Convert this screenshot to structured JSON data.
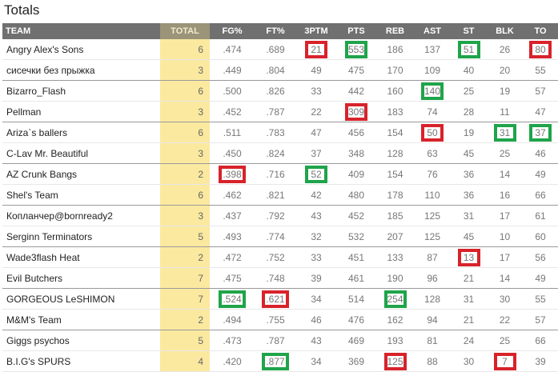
{
  "title": "Totals",
  "columns": [
    "TEAM",
    "TOTAL",
    "FG%",
    "FT%",
    "3PTM",
    "PTS",
    "REB",
    "AST",
    "ST",
    "BLK",
    "TO"
  ],
  "rows": [
    {
      "team": "Angry Alex's Sons",
      "total": "6",
      "fg": ".474",
      "ft": ".689",
      "tpm": "21",
      "pts": "553",
      "reb": "186",
      "ast": "137",
      "st": "51",
      "blk": "26",
      "to": "80"
    },
    {
      "team": "сисечки без прыжка",
      "total": "3",
      "fg": ".449",
      "ft": ".804",
      "tpm": "49",
      "pts": "475",
      "reb": "170",
      "ast": "109",
      "st": "40",
      "blk": "20",
      "to": "55"
    },
    {
      "team": "Bizarro_Flash",
      "total": "6",
      "fg": ".500",
      "ft": ".826",
      "tpm": "33",
      "pts": "442",
      "reb": "160",
      "ast": "140",
      "st": "25",
      "blk": "19",
      "to": "57"
    },
    {
      "team": "Pellman",
      "total": "3",
      "fg": ".452",
      "ft": ".787",
      "tpm": "22",
      "pts": "309",
      "reb": "183",
      "ast": "74",
      "st": "28",
      "blk": "11",
      "to": "47"
    },
    {
      "team": "Ariza`s ballers",
      "total": "6",
      "fg": ".511",
      "ft": ".783",
      "tpm": "47",
      "pts": "456",
      "reb": "154",
      "ast": "50",
      "st": "19",
      "blk": "31",
      "to": "37"
    },
    {
      "team": "C-Lav Mr. Beautiful",
      "total": "3",
      "fg": ".450",
      "ft": ".824",
      "tpm": "37",
      "pts": "348",
      "reb": "128",
      "ast": "63",
      "st": "45",
      "blk": "25",
      "to": "46"
    },
    {
      "team": "AZ Crunk Bangs",
      "total": "2",
      "fg": ".398",
      "ft": ".716",
      "tpm": "52",
      "pts": "409",
      "reb": "154",
      "ast": "76",
      "st": "36",
      "blk": "14",
      "to": "49"
    },
    {
      "team": "Shel's Team",
      "total": "6",
      "fg": ".462",
      "ft": ".821",
      "tpm": "42",
      "pts": "480",
      "reb": "178",
      "ast": "110",
      "st": "36",
      "blk": "16",
      "to": "66"
    },
    {
      "team": "Копланчер@bornready2",
      "total": "3",
      "fg": ".437",
      "ft": ".792",
      "tpm": "43",
      "pts": "452",
      "reb": "185",
      "ast": "125",
      "st": "31",
      "blk": "17",
      "to": "61"
    },
    {
      "team": "Serginn Terminators",
      "total": "5",
      "fg": ".493",
      "ft": ".774",
      "tpm": "32",
      "pts": "532",
      "reb": "207",
      "ast": "125",
      "st": "45",
      "blk": "10",
      "to": "60"
    },
    {
      "team": "Wade3flash Heat",
      "total": "2",
      "fg": ".472",
      "ft": ".752",
      "tpm": "33",
      "pts": "451",
      "reb": "133",
      "ast": "87",
      "st": "13",
      "blk": "17",
      "to": "56"
    },
    {
      "team": "Evil Butchers",
      "total": "7",
      "fg": ".475",
      "ft": ".748",
      "tpm": "39",
      "pts": "461",
      "reb": "190",
      "ast": "96",
      "st": "21",
      "blk": "14",
      "to": "49"
    },
    {
      "team": "GORGEOUS LeSHIMON",
      "total": "7",
      "fg": ".524",
      "ft": ".621",
      "tpm": "34",
      "pts": "514",
      "reb": "254",
      "ast": "128",
      "st": "31",
      "blk": "30",
      "to": "55"
    },
    {
      "team": "M&M's Team",
      "total": "2",
      "fg": ".494",
      "ft": ".755",
      "tpm": "46",
      "pts": "476",
      "reb": "162",
      "ast": "94",
      "st": "21",
      "blk": "22",
      "to": "57"
    },
    {
      "team": "Giggs psychos",
      "total": "5",
      "fg": ".473",
      "ft": ".787",
      "tpm": "43",
      "pts": "469",
      "reb": "193",
      "ast": "81",
      "st": "24",
      "blk": "25",
      "to": "66"
    },
    {
      "team": "B.I.G's SPURS",
      "total": "4",
      "fg": ".420",
      "ft": ".877",
      "tpm": "34",
      "pts": "369",
      "reb": "125",
      "ast": "88",
      "st": "30",
      "blk": "7",
      "to": "39"
    }
  ],
  "highlights": {
    "red_color": "#d8232b",
    "green_color": "#1fa44a",
    "cells": [
      {
        "row": 0,
        "key": "tpm",
        "color": "red"
      },
      {
        "row": 0,
        "key": "pts",
        "color": "green"
      },
      {
        "row": 0,
        "key": "st",
        "color": "green"
      },
      {
        "row": 0,
        "key": "to",
        "color": "red"
      },
      {
        "row": 2,
        "key": "ast",
        "color": "green"
      },
      {
        "row": 3,
        "key": "pts",
        "color": "red"
      },
      {
        "row": 4,
        "key": "ast",
        "color": "red"
      },
      {
        "row": 4,
        "key": "blk",
        "color": "green"
      },
      {
        "row": 4,
        "key": "to",
        "color": "green"
      },
      {
        "row": 6,
        "key": "fg",
        "color": "red"
      },
      {
        "row": 6,
        "key": "tpm",
        "color": "green"
      },
      {
        "row": 10,
        "key": "st",
        "color": "red"
      },
      {
        "row": 12,
        "key": "fg",
        "color": "green"
      },
      {
        "row": 12,
        "key": "ft",
        "color": "red"
      },
      {
        "row": 12,
        "key": "reb",
        "color": "green"
      },
      {
        "row": 15,
        "key": "ft",
        "color": "green"
      },
      {
        "row": 15,
        "key": "reb",
        "color": "red"
      },
      {
        "row": 15,
        "key": "blk",
        "color": "red"
      }
    ]
  }
}
